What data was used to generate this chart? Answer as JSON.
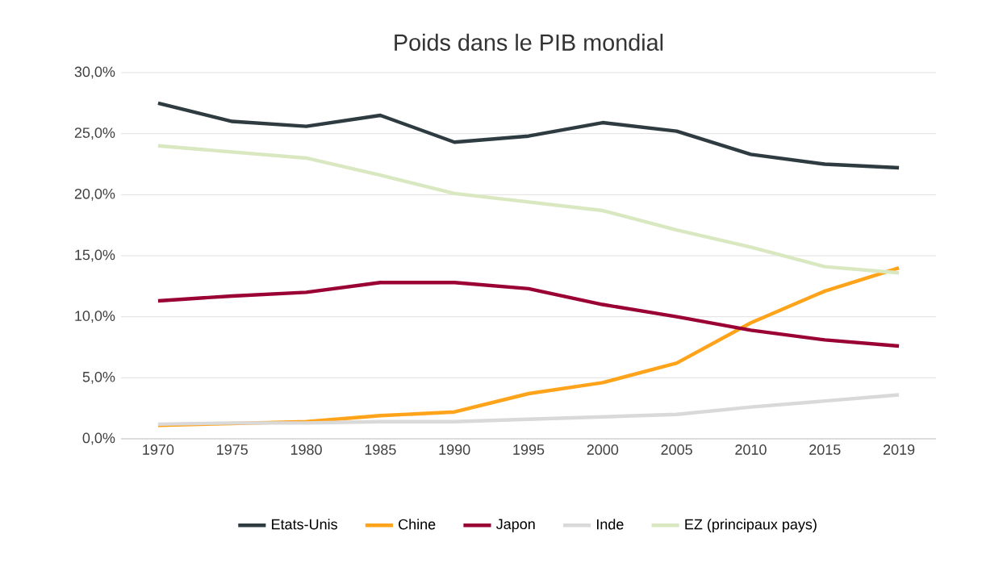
{
  "chart_data": {
    "type": "line",
    "title": "Poids dans le PIB mondial",
    "categories": [
      "1970",
      "1975",
      "1980",
      "1985",
      "1990",
      "1995",
      "2000",
      "2005",
      "2010",
      "2015",
      "2019"
    ],
    "series": [
      {
        "name": "Etats-Unis",
        "color": "#2e3b40",
        "values": [
          27.5,
          26.0,
          25.6,
          26.5,
          24.3,
          24.8,
          25.9,
          25.2,
          23.3,
          22.5,
          22.2
        ]
      },
      {
        "name": "Chine",
        "color": "#ffa31a",
        "values": [
          1.1,
          null,
          1.4,
          1.9,
          2.2,
          3.7,
          4.6,
          6.2,
          9.5,
          12.1,
          14.0
        ]
      },
      {
        "name": "Japon",
        "color": "#9b0034",
        "values": [
          11.3,
          11.7,
          12.0,
          12.8,
          12.8,
          12.3,
          11.0,
          10.0,
          8.9,
          8.1,
          7.6
        ]
      },
      {
        "name": "Inde",
        "color": "#d9d9d9",
        "values": [
          1.2,
          1.3,
          1.3,
          1.4,
          1.4,
          1.6,
          1.8,
          2.0,
          2.6,
          3.1,
          3.6
        ]
      },
      {
        "name": "EZ (principaux pays)",
        "color": "#d9e8c0",
        "values": [
          24.0,
          23.5,
          23.0,
          21.6,
          20.1,
          19.4,
          18.7,
          17.1,
          15.7,
          14.1,
          13.6
        ]
      }
    ],
    "ylim": [
      0,
      30
    ],
    "yticks": [
      {
        "value": 0,
        "label": "0,0%"
      },
      {
        "value": 5,
        "label": "5,0%"
      },
      {
        "value": 10,
        "label": "10,0%"
      },
      {
        "value": 15,
        "label": "15,0%"
      },
      {
        "value": 20,
        "label": "20,0%"
      },
      {
        "value": 25,
        "label": "25,0%"
      },
      {
        "value": 30,
        "label": "30,0%"
      }
    ],
    "grid": "y",
    "legend": "bottom",
    "marker": "none",
    "line_style": "solid"
  }
}
